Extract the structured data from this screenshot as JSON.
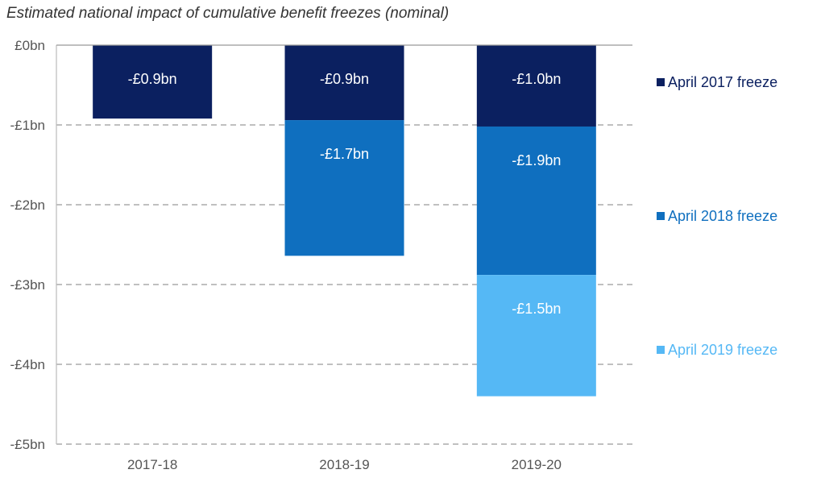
{
  "chart_data": {
    "type": "bar",
    "stacked": true,
    "title": "Estimated national impact of cumulative benefit freezes (nominal)",
    "categories": [
      "2017-18",
      "2018-19",
      "2019-20"
    ],
    "ylim": [
      -5,
      0
    ],
    "yticks": [
      0,
      -1,
      -2,
      -3,
      -4,
      -5
    ],
    "ytick_labels": [
      "£0bn",
      "-£1bn",
      "-£2bn",
      "-£3bn",
      "-£4bn",
      "-£5bn"
    ],
    "grid": "horizontal dashed",
    "legend_position": "right",
    "series": [
      {
        "name": "April 2017 freeze",
        "color": "#0b2060",
        "values": [
          -0.92,
          -0.94,
          -1.02
        ],
        "labels": [
          "-£0.9bn",
          "-£0.9bn",
          "-£1.0bn"
        ]
      },
      {
        "name": "April 2018 freeze",
        "color": "#0f6fbf",
        "values": [
          null,
          -1.7,
          -1.86
        ],
        "labels": [
          "",
          "-£1.7bn",
          "-£1.9bn"
        ]
      },
      {
        "name": "April 2019 freeze",
        "color": "#55b8f5",
        "values": [
          null,
          null,
          -1.52
        ],
        "labels": [
          "",
          "",
          "-£1.5bn"
        ]
      }
    ]
  }
}
